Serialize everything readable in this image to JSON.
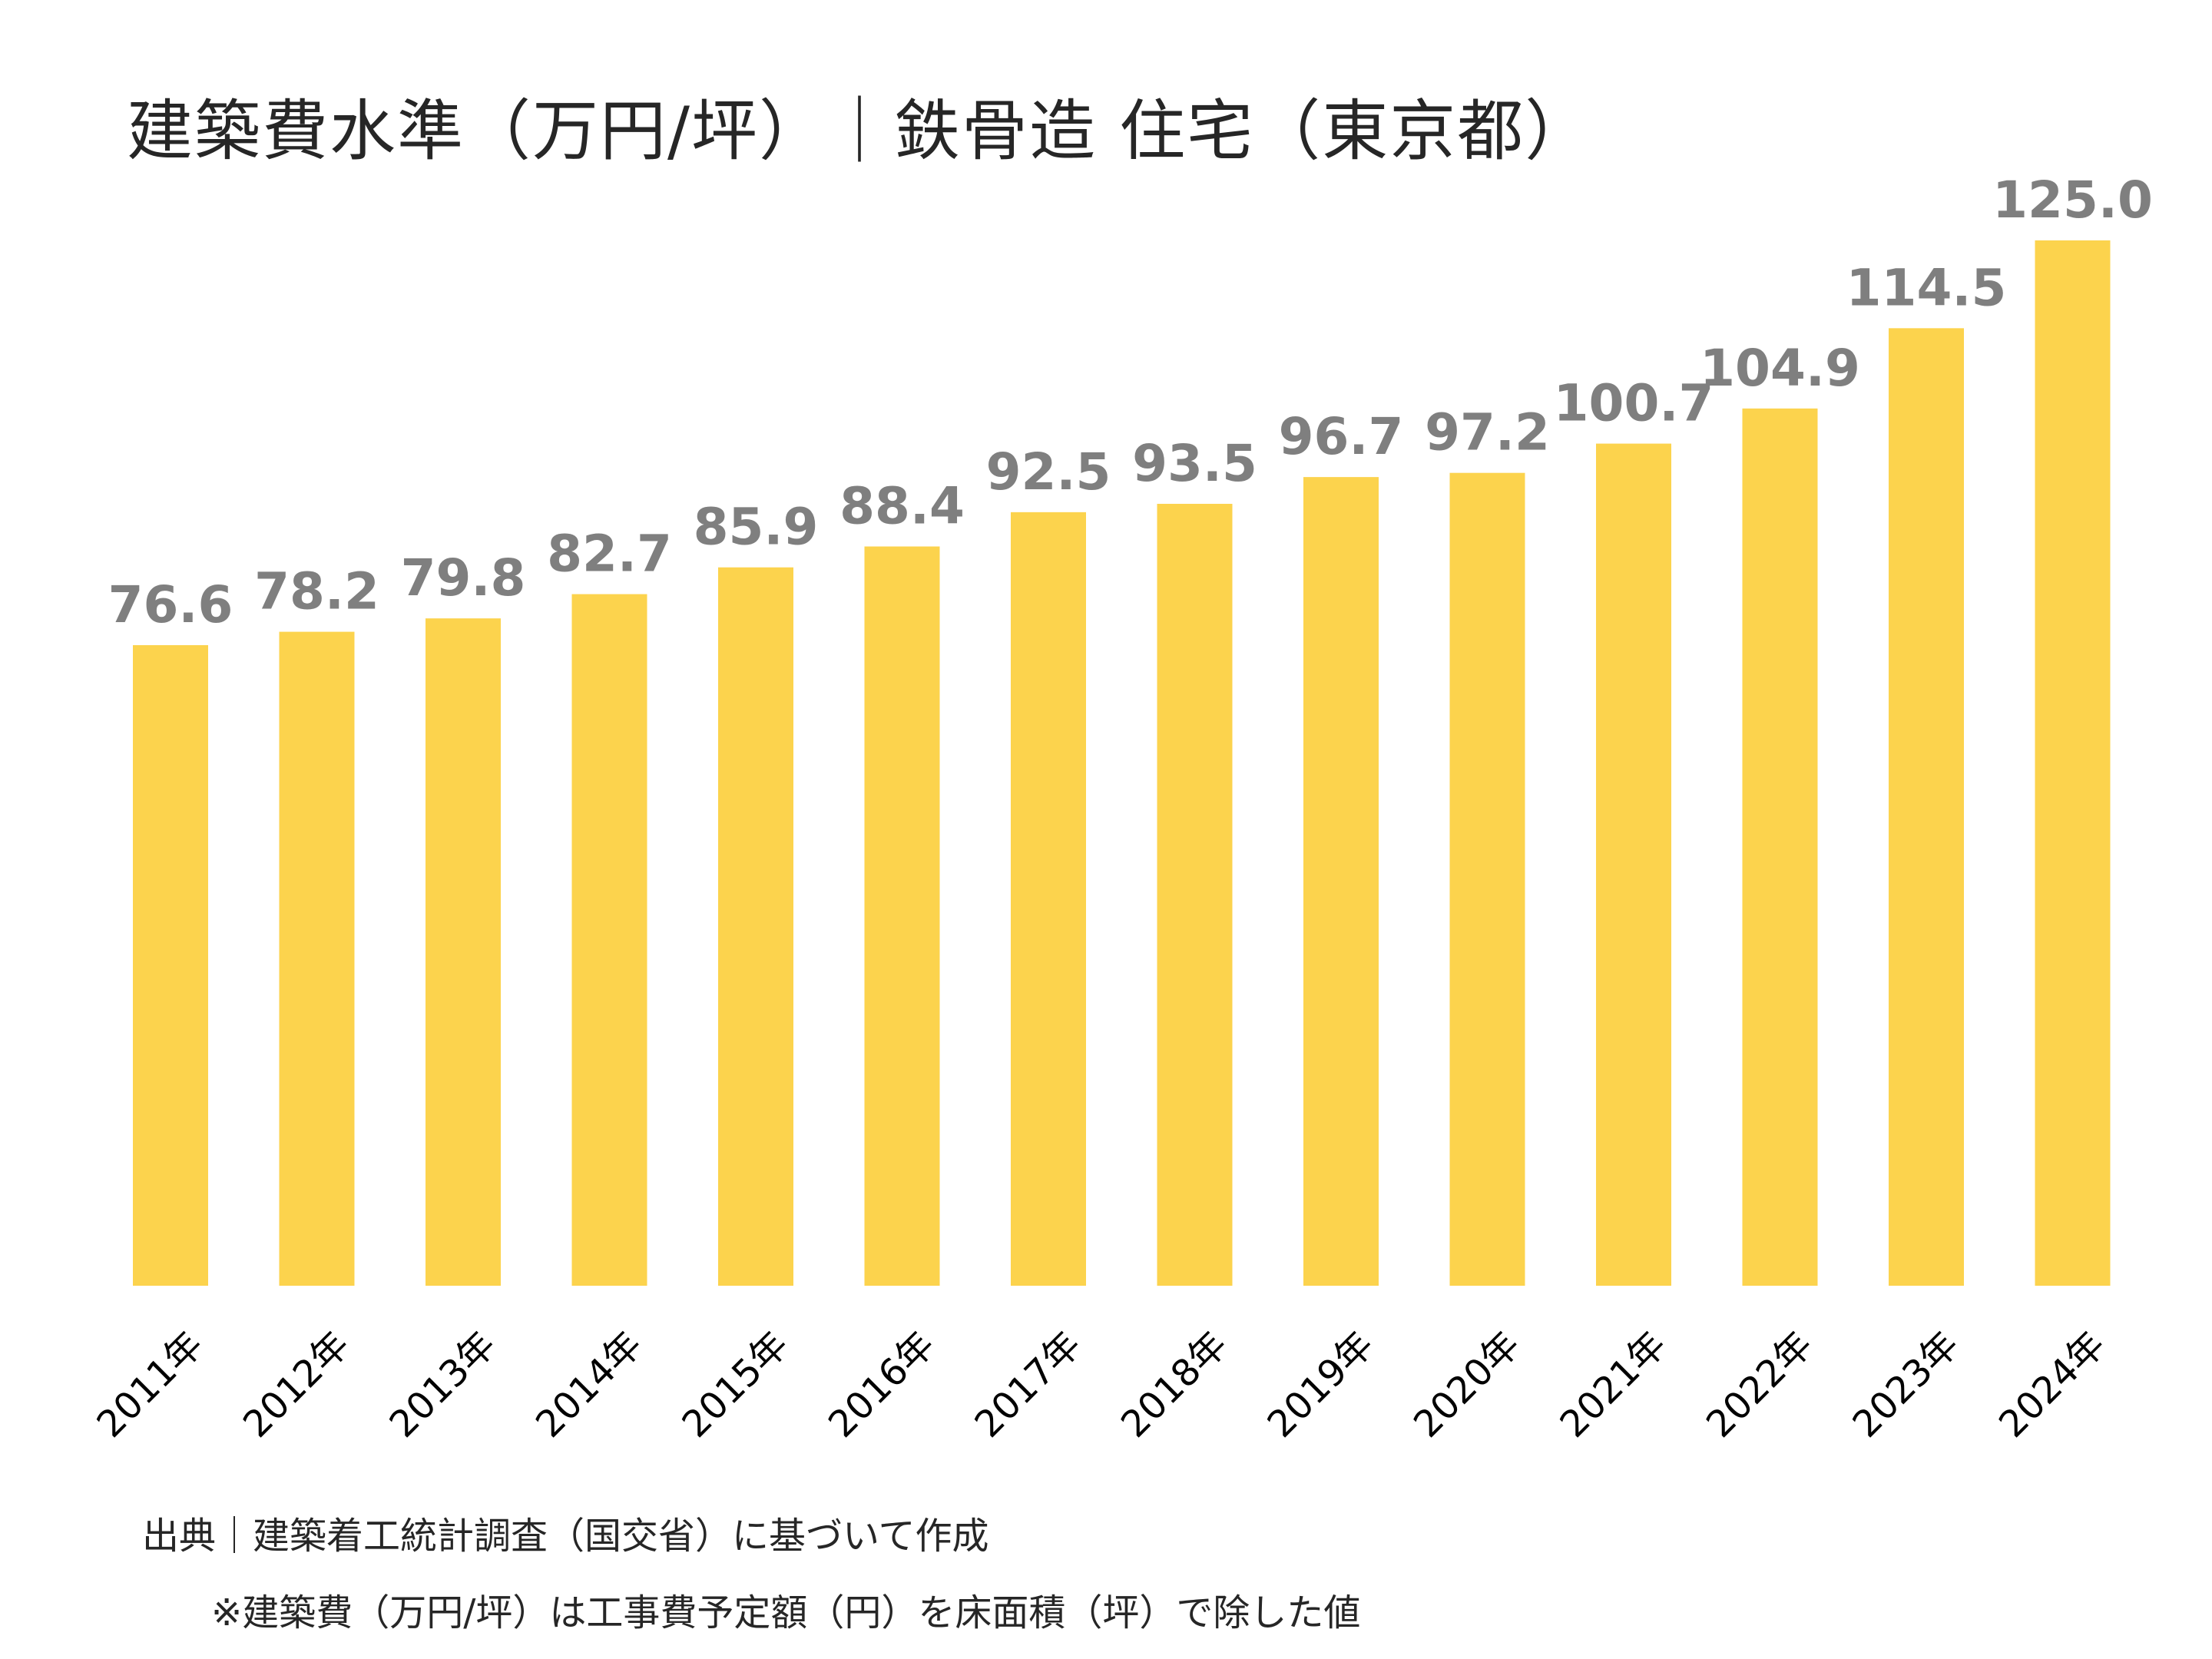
{
  "chart_data": {
    "type": "bar",
    "title": "建築費水準（万円/坪）｜鉄骨造 住宅（東京都）",
    "categories": [
      "2011年",
      "2012年",
      "2013年",
      "2014年",
      "2015年",
      "2016年",
      "2017年",
      "2018年",
      "2019年",
      "2020年",
      "2021年",
      "2022年",
      "2023年",
      "2024年"
    ],
    "values": [
      76.6,
      78.2,
      79.8,
      82.7,
      85.9,
      88.4,
      92.5,
      93.5,
      96.7,
      97.2,
      100.7,
      104.9,
      114.5,
      125.0
    ],
    "value_labels": [
      "76.6",
      "78.2",
      "79.8",
      "82.7",
      "85.9",
      "88.4",
      "92.5",
      "93.5",
      "96.7",
      "97.2",
      "100.7",
      "104.9",
      "114.5",
      "125.0"
    ],
    "ylim": [
      0,
      125
    ],
    "grid": false,
    "bar_color": "#fcd34d",
    "label_color": "#7f7f7f"
  },
  "footer": {
    "source": "出典｜建築着工統計調査（国交省）に基づいて作成",
    "note": "※建築費（万円/坪）は工事費予定額（円）を床面積（坪）で除した値"
  }
}
